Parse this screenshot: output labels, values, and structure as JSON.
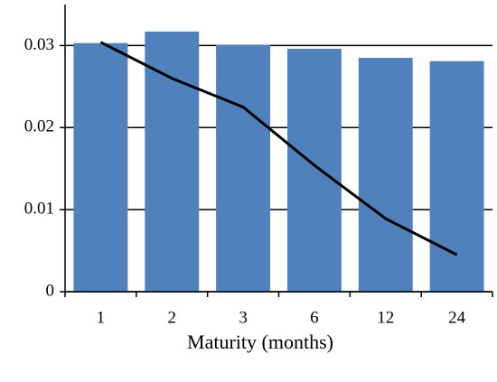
{
  "chart_data": {
    "type": "bar",
    "xlabel": "Maturity (months)",
    "categories": [
      "1",
      "2",
      "3",
      "6",
      "12",
      "24"
    ],
    "series": [
      {
        "type": "bar",
        "color": "#4f81bd",
        "values": [
          0.0303,
          0.0317,
          0.0301,
          0.0296,
          0.0285,
          0.0281
        ]
      },
      {
        "type": "line",
        "color": "#000000",
        "values": [
          0.0304,
          0.026,
          0.0225,
          0.0154,
          0.0089,
          0.0045
        ]
      }
    ],
    "ylim": [
      0,
      0.035
    ],
    "yticks": [
      0,
      0.01,
      0.02,
      0.03
    ],
    "grid": true
  }
}
